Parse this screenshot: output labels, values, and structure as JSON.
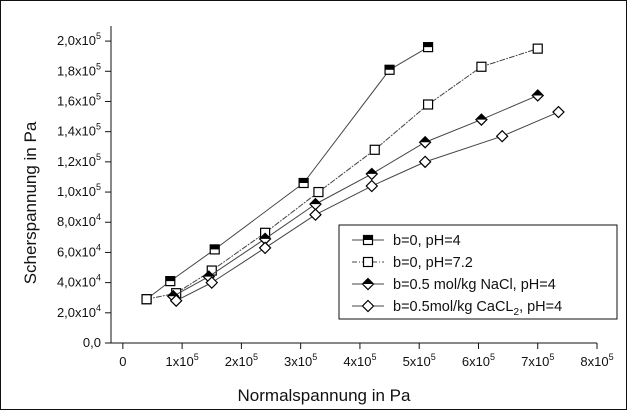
{
  "chart_data": {
    "type": "line",
    "xlabel": "Normalspannung in Pa",
    "ylabel": "Scherspannung in Pa",
    "xlim": [
      -20000,
      800000
    ],
    "ylim": [
      0,
      210000
    ],
    "grid": false,
    "legend_position": "bottom-right",
    "xticks": [
      {
        "value": 0,
        "mantissa": "0",
        "exponent": ""
      },
      {
        "value": 100000,
        "mantissa": "1x10",
        "exponent": "5"
      },
      {
        "value": 200000,
        "mantissa": "2x10",
        "exponent": "5"
      },
      {
        "value": 300000,
        "mantissa": "3x10",
        "exponent": "5"
      },
      {
        "value": 400000,
        "mantissa": "4x10",
        "exponent": "5"
      },
      {
        "value": 500000,
        "mantissa": "5x10",
        "exponent": "5"
      },
      {
        "value": 600000,
        "mantissa": "6x10",
        "exponent": "5"
      },
      {
        "value": 700000,
        "mantissa": "7x10",
        "exponent": "5"
      },
      {
        "value": 800000,
        "mantissa": "8x10",
        "exponent": "5"
      }
    ],
    "yticks": [
      {
        "value": 0,
        "mantissa": "0,0",
        "exponent": ""
      },
      {
        "value": 20000,
        "mantissa": "2,0x10",
        "exponent": "4"
      },
      {
        "value": 40000,
        "mantissa": "4,0x10",
        "exponent": "4"
      },
      {
        "value": 60000,
        "mantissa": "6,0x10",
        "exponent": "4"
      },
      {
        "value": 80000,
        "mantissa": "8,0x10",
        "exponent": "4"
      },
      {
        "value": 100000,
        "mantissa": "1,0x10",
        "exponent": "5"
      },
      {
        "value": 120000,
        "mantissa": "1,2x10",
        "exponent": "5"
      },
      {
        "value": 140000,
        "mantissa": "1,4x10",
        "exponent": "5"
      },
      {
        "value": 160000,
        "mantissa": "1,6x10",
        "exponent": "5"
      },
      {
        "value": 180000,
        "mantissa": "1,8x10",
        "exponent": "5"
      },
      {
        "value": 200000,
        "mantissa": "2,0x10",
        "exponent": "5"
      }
    ],
    "series": [
      {
        "name": "b=0, pH=4",
        "marker": "half-filled-square",
        "line_style": "solid",
        "color": "#000000",
        "points": [
          [
            40000,
            29000
          ],
          [
            80000,
            41000
          ],
          [
            155000,
            62000
          ],
          [
            305000,
            106000
          ],
          [
            450000,
            181000
          ],
          [
            515000,
            196000
          ]
        ]
      },
      {
        "name": "b=0, pH=7.2",
        "marker": "open-square",
        "line_style": "dash-dot",
        "color": "#000000",
        "points": [
          [
            40000,
            29000
          ],
          [
            90000,
            33000
          ],
          [
            150000,
            48000
          ],
          [
            240000,
            73000
          ],
          [
            330000,
            100000
          ],
          [
            425000,
            128000
          ],
          [
            515000,
            158000
          ],
          [
            605000,
            183000
          ],
          [
            700000,
            195000
          ]
        ]
      },
      {
        "name": "b=0.5 mol/kg NaCl, pH=4",
        "marker": "half-filled-diamond",
        "line_style": "solid",
        "color": "#000000",
        "points": [
          [
            85000,
            31000
          ],
          [
            145000,
            44000
          ],
          [
            240000,
            69000
          ],
          [
            325000,
            92000
          ],
          [
            420000,
            112000
          ],
          [
            510000,
            133000
          ],
          [
            605000,
            148000
          ],
          [
            700000,
            164000
          ]
        ]
      },
      {
        "name": "b=0.5mol/kg CaCL2, pH=4",
        "legend_main": "b=0.5mol/kg CaCL",
        "legend_sub": "2",
        "legend_tail": ", pH=4",
        "marker": "open-diamond",
        "line_style": "solid",
        "color": "#000000",
        "points": [
          [
            90000,
            28000
          ],
          [
            150000,
            40000
          ],
          [
            240000,
            63000
          ],
          [
            325000,
            85000
          ],
          [
            420000,
            104000
          ],
          [
            510000,
            120000
          ],
          [
            640000,
            137000
          ],
          [
            735000,
            153000
          ]
        ]
      }
    ]
  }
}
